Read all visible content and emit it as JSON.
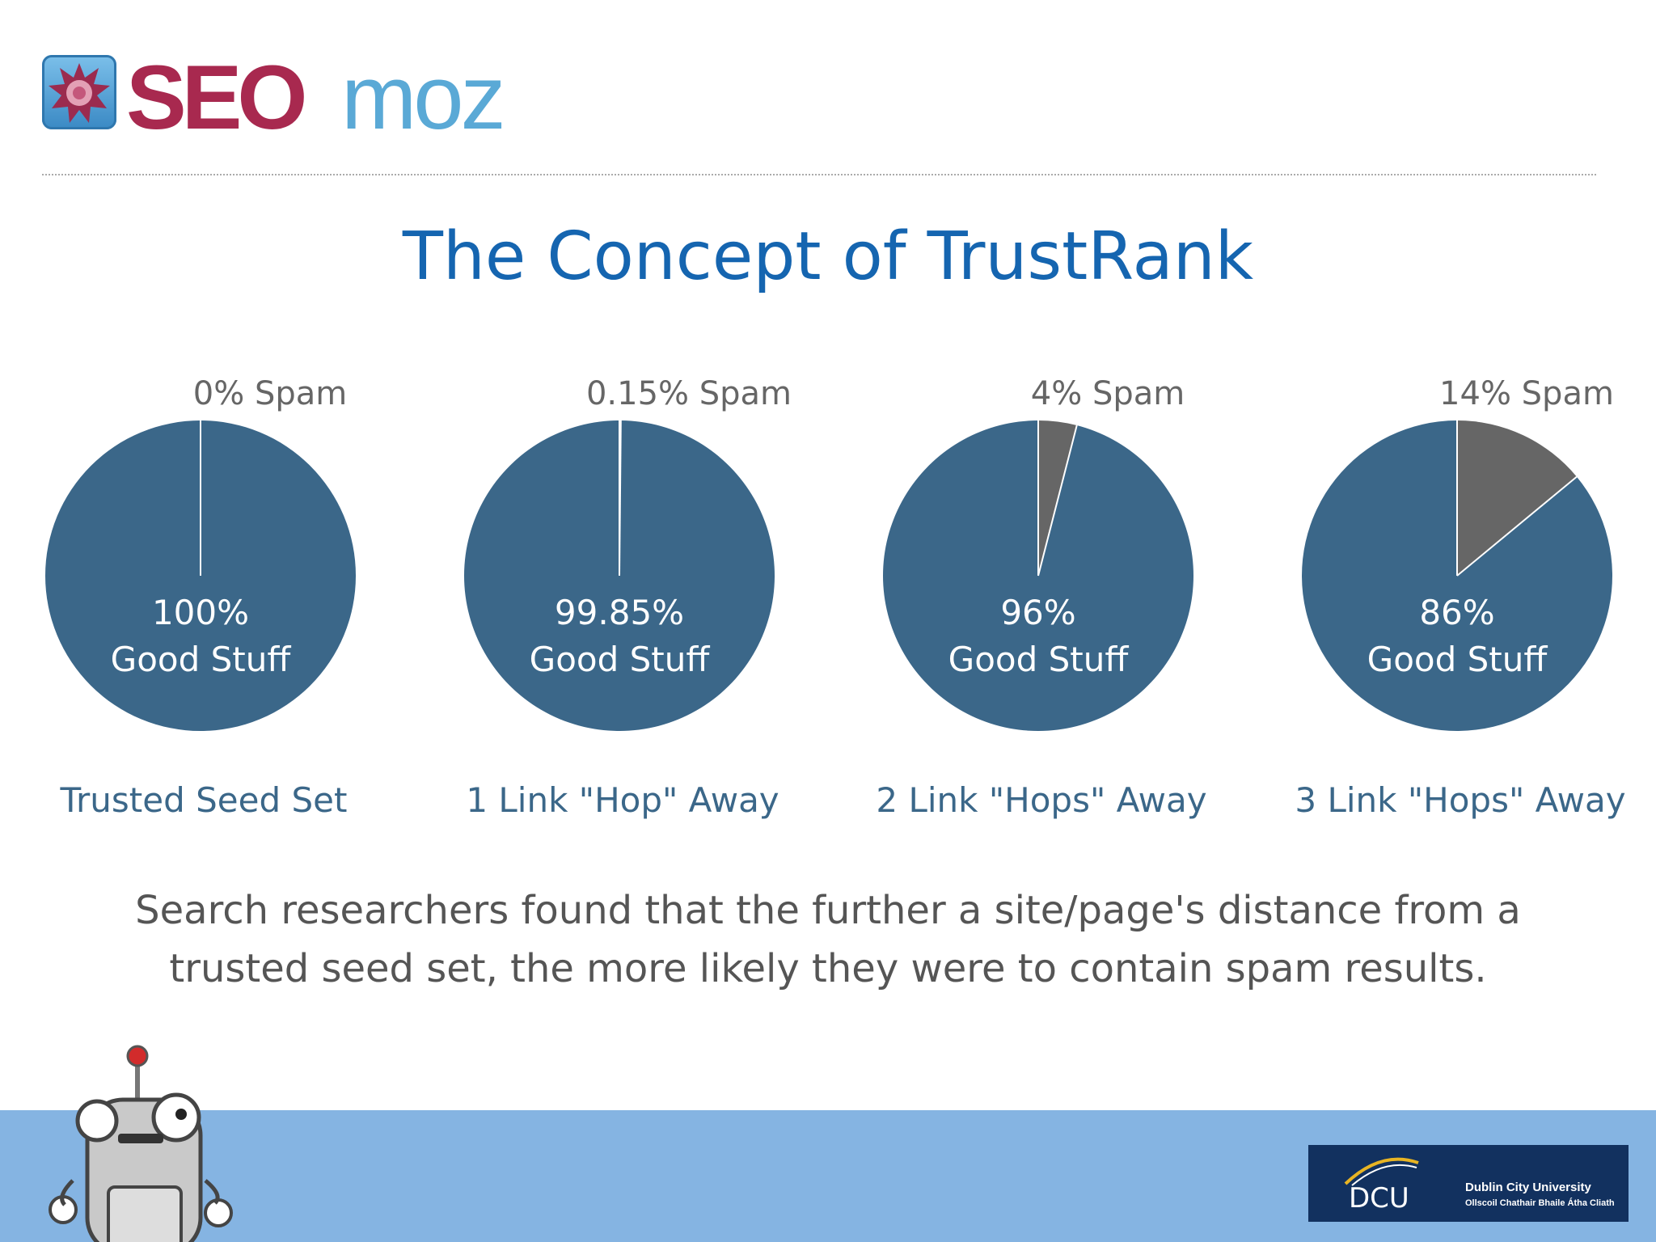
{
  "logo": {
    "seo": "SEO",
    "moz": "moz"
  },
  "slide": {
    "title": "The Concept of TrustRank",
    "caption_lines": [
      "Search researchers found that the further a site/page's distance from a",
      "trusted seed set, the more likely they were to contain spam results."
    ]
  },
  "chart_data": {
    "type": "pie",
    "colors": {
      "good": "#3b6789",
      "spam": "#666666"
    },
    "charts": [
      {
        "spam_label": "0% Spam",
        "spam_value": 0,
        "good_value": 100,
        "good_label_lines": [
          "100%",
          "Good Stuff"
        ],
        "caption": "Trusted Seed Set"
      },
      {
        "spam_label": "0.15% Spam",
        "spam_value": 0.15,
        "good_value": 99.85,
        "good_label_lines": [
          "99.85%",
          "Good Stuff"
        ],
        "caption": "1 Link \"Hop\" Away"
      },
      {
        "spam_label": "4% Spam",
        "spam_value": 4,
        "good_value": 96,
        "good_label_lines": [
          "96%",
          "Good Stuff"
        ],
        "caption": "2 Link \"Hops\" Away"
      },
      {
        "spam_label": "14% Spam",
        "spam_value": 14,
        "good_value": 86,
        "good_label_lines": [
          "86%",
          "Good Stuff"
        ],
        "caption": "3 Link \"Hops\" Away"
      }
    ]
  },
  "footer": {
    "dcu_mark": "DCU",
    "dcu_name": "Dublin City University",
    "dcu_irish": "Ollscoil Chathair Bhaile Átha Cliath"
  }
}
